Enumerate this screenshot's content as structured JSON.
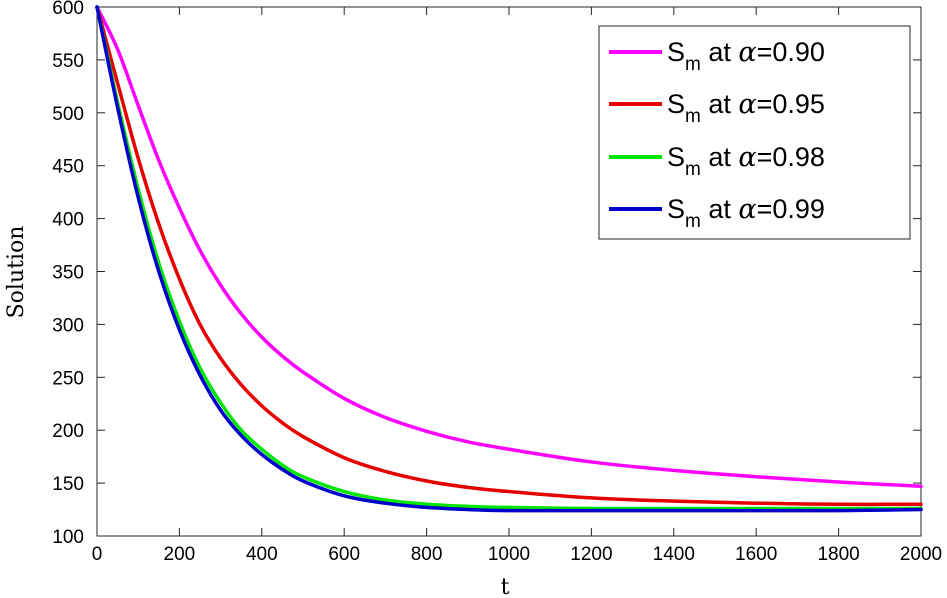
{
  "chart_data": {
    "type": "line",
    "xlabel": "t",
    "ylabel": "Solution",
    "xlim": [
      0,
      2000
    ],
    "ylim": [
      100,
      600
    ],
    "xticks": [
      0,
      200,
      400,
      600,
      800,
      1000,
      1200,
      1400,
      1600,
      1800,
      2000
    ],
    "yticks": [
      100,
      150,
      200,
      250,
      300,
      350,
      400,
      450,
      500,
      550,
      600
    ],
    "grid": false,
    "legend_position": "top-right",
    "x": [
      0,
      50,
      100,
      150,
      200,
      250,
      300,
      350,
      400,
      450,
      500,
      600,
      700,
      800,
      900,
      1000,
      1200,
      1400,
      1600,
      1800,
      2000
    ],
    "series": [
      {
        "legend_main": "S",
        "legend_sub": "m",
        "legend_mid": " at ",
        "legend_symbol": "α",
        "legend_value": "=0.90",
        "color": "#ff00ff",
        "values": [
          600,
          560,
          507,
          455,
          410,
          370,
          337,
          310,
          288,
          270,
          255,
          230,
          212,
          199,
          189,
          182,
          170,
          162,
          156,
          151,
          147
        ]
      },
      {
        "legend_main": "S",
        "legend_sub": "m",
        "legend_mid": " at ",
        "legend_symbol": "α",
        "legend_value": "=0.95",
        "color": "#e60000",
        "values": [
          600,
          528,
          457,
          395,
          343,
          300,
          268,
          243,
          223,
          207,
          194,
          174,
          161,
          152,
          146,
          142,
          136,
          133,
          131,
          130,
          130
        ]
      },
      {
        "legend_main": "S",
        "legend_sub": "m",
        "legend_mid": " at ",
        "legend_symbol": "α",
        "legend_value": "=0.98",
        "color": "#00e600",
        "values": [
          600,
          510,
          428,
          358,
          303,
          259,
          226,
          200,
          182,
          167,
          156,
          142,
          134,
          130,
          128,
          127,
          126,
          126,
          126,
          126,
          126
        ]
      },
      {
        "legend_main": "S",
        "legend_sub": "m",
        "legend_mid": " at ",
        "legend_symbol": "α",
        "legend_value": "=0.99",
        "color": "#0000cc",
        "values": [
          600,
          505,
          420,
          350,
          295,
          252,
          219,
          195,
          177,
          163,
          152,
          138,
          131,
          127,
          125,
          124,
          124,
          124,
          124,
          124,
          125
        ]
      }
    ]
  }
}
